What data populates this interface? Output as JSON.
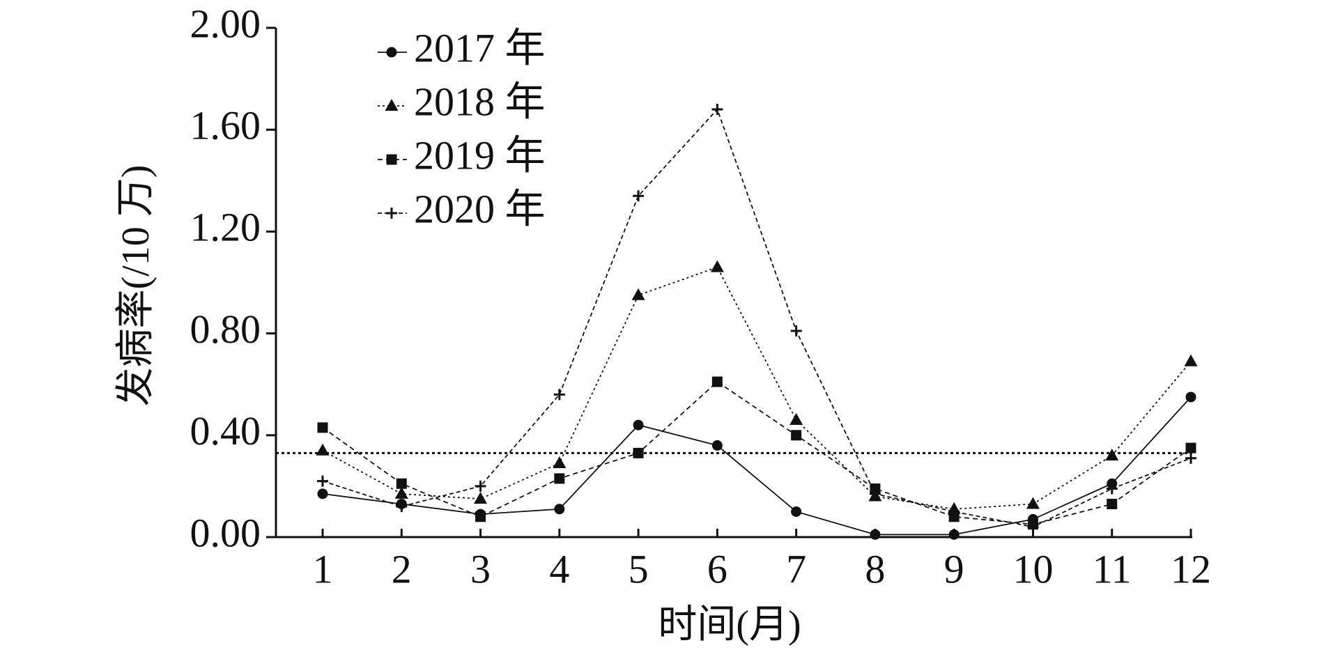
{
  "chart_data": {
    "type": "line",
    "x_label": "时间(月)",
    "y_label": "发病率(/10 万)",
    "categories": [
      "1",
      "2",
      "3",
      "4",
      "5",
      "6",
      "7",
      "8",
      "9",
      "10",
      "11",
      "12"
    ],
    "ylim": [
      0,
      2
    ],
    "yticks": [
      {
        "value": 0,
        "label": "0.00"
      },
      {
        "value": 0.4,
        "label": "0.40"
      },
      {
        "value": 0.8,
        "label": "0.80"
      },
      {
        "value": 1.2,
        "label": "1.20"
      },
      {
        "value": 1.6,
        "label": "1.60"
      },
      {
        "value": 2,
        "label": "2.00"
      }
    ],
    "reference_line": 0.33,
    "legend": "upper left",
    "series": [
      {
        "name": "2017 年",
        "color": "#111111",
        "marker": "circle",
        "dash": "solid",
        "values": [
          0.17,
          0.13,
          0.09,
          0.11,
          0.44,
          0.36,
          0.1,
          0.01,
          0.01,
          0.07,
          0.21,
          0.55
        ]
      },
      {
        "name": "2018 年",
        "color": "#111111",
        "marker": "triangle",
        "dash": "dotted",
        "values": [
          0.34,
          0.17,
          0.15,
          0.29,
          0.95,
          1.06,
          0.46,
          0.16,
          0.11,
          0.13,
          0.32,
          0.69
        ]
      },
      {
        "name": "2019 年",
        "color": "#111111",
        "marker": "square",
        "dash": "dashed",
        "values": [
          0.43,
          0.21,
          0.08,
          0.23,
          0.33,
          0.61,
          0.4,
          0.19,
          0.08,
          0.05,
          0.13,
          0.35
        ]
      },
      {
        "name": "2020 年",
        "color": "#111111",
        "marker": "plus",
        "dash": "dashdot",
        "values": [
          0.22,
          0.12,
          0.2,
          0.56,
          1.34,
          1.68,
          0.81,
          0.17,
          0.1,
          0.04,
          0.19,
          0.31
        ]
      }
    ]
  }
}
